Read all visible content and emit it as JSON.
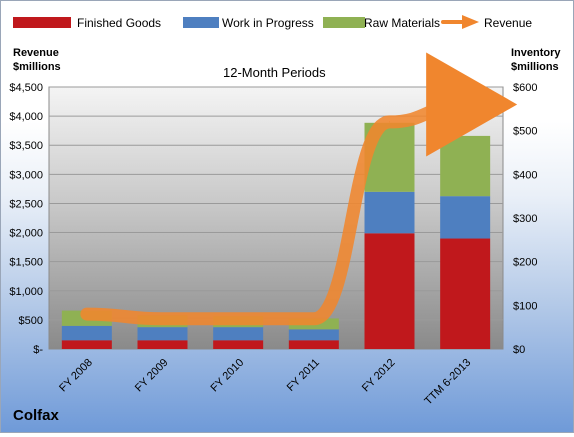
{
  "chart_data": {
    "type": "bar",
    "subtitle": "12-Month Periods",
    "company": "Colfax",
    "categories": [
      "FY 2008",
      "FY 2009",
      "FY 2010",
      "FY 2011",
      "FY 2012",
      "TTM 6-2013"
    ],
    "left_axis": {
      "title_line1": "Revenue",
      "title_line2": "$millions",
      "ticks": [
        0,
        500,
        1000,
        1500,
        2000,
        2500,
        3000,
        3500,
        4000,
        4500
      ],
      "tick_labels": [
        "$-",
        "$500",
        "$1,000",
        "$1,500",
        "$2,000",
        "$2,500",
        "$3,000",
        "$3,500",
        "$4,000",
        "$4,500"
      ],
      "ylim": [
        0,
        4500
      ]
    },
    "right_axis": {
      "title_line1": "Inventory",
      "title_line2": "$millions",
      "ticks": [
        0,
        100,
        200,
        300,
        400,
        500,
        600
      ],
      "tick_labels": [
        "$0",
        "$100",
        "$200",
        "$300",
        "$400",
        "$500",
        "$600"
      ],
      "ylim": [
        0,
        600
      ]
    },
    "stacked_series": [
      {
        "name": "Finished Goods",
        "color": "#c0181c",
        "axis": "right",
        "values": [
          20,
          20,
          20,
          20,
          265,
          253
        ]
      },
      {
        "name": "Work in Progress",
        "color": "#4e7fc0",
        "axis": "right",
        "values": [
          33,
          30,
          30,
          25,
          95,
          97
        ]
      },
      {
        "name": "Raw Materials",
        "color": "#8fb153",
        "axis": "right",
        "values": [
          35,
          27,
          25,
          25,
          158,
          138
        ]
      }
    ],
    "line_series": {
      "name": "Revenue",
      "color": "#f0862e",
      "axis": "left",
      "values": [
        600,
        520,
        520,
        520,
        3900,
        4200
      ]
    },
    "legend_position": "top",
    "grid": true
  }
}
